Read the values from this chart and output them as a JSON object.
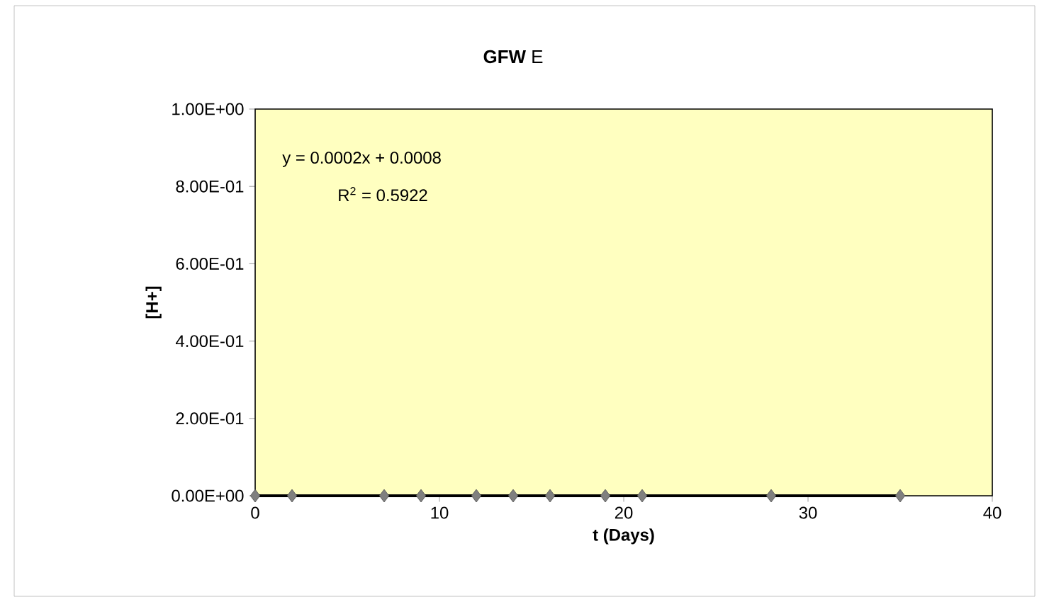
{
  "chart_data": {
    "type": "scatter",
    "title": "**GFW** E",
    "xlabel": "t (Days)",
    "ylabel": "[H+]",
    "marker": "diamond",
    "grid": false,
    "xlim": [
      0,
      40
    ],
    "xticks": [
      0,
      10,
      20,
      30,
      40
    ],
    "ylim": [
      0,
      1
    ],
    "yticks": [
      {
        "value": 0,
        "label": "0.00E+00"
      },
      {
        "value": 0.2,
        "label": "2.00E-01"
      },
      {
        "value": 0.4,
        "label": "4.00E-01"
      },
      {
        "value": 0.6,
        "label": "6.00E-01"
      },
      {
        "value": 0.8,
        "label": "8.00E-01"
      },
      {
        "value": 1,
        "label": "1.00E+00"
      }
    ],
    "annotations": [
      "y = 0.0002x + 0.0008",
      "R$^{2}$ = 0.5922"
    ],
    "series": [
      {
        "color": "#7f7f7f",
        "x": [
          0,
          2,
          7,
          9,
          12,
          14,
          16,
          19,
          21,
          28,
          35
        ],
        "values": [
          0,
          0,
          0,
          0,
          0,
          0,
          0,
          0,
          0,
          0,
          0
        ]
      },
      {
        "type": "line",
        "marker": "none",
        "color": "#000000",
        "x": [
          0,
          35
        ],
        "values": [
          0,
          0
        ]
      }
    ]
  }
}
